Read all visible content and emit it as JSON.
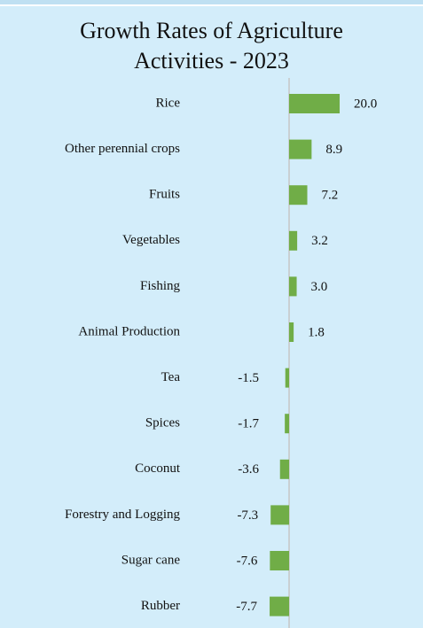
{
  "chart_data": {
    "type": "bar",
    "orientation": "horizontal",
    "title": "Growth Rates of Agriculture Activities - 2023",
    "categories": [
      "Rice",
      "Other perennial crops",
      "Fruits",
      "Vegetables",
      "Fishing",
      "Animal Production",
      "Tea",
      "Spices",
      "Coconut",
      "Forestry and Logging",
      "Sugar cane",
      "Rubber"
    ],
    "values": [
      20.0,
      8.9,
      7.2,
      3.2,
      3.0,
      1.8,
      -1.5,
      -1.7,
      -3.6,
      -7.3,
      -7.6,
      -7.7
    ],
    "value_labels": [
      "20.0",
      "8.9",
      "7.2",
      "3.2",
      "3.0",
      "1.8",
      "-1.5",
      "-1.7",
      "-3.6",
      "-7.3",
      "-7.6",
      "-7.7"
    ],
    "color": "#70ad47"
  }
}
